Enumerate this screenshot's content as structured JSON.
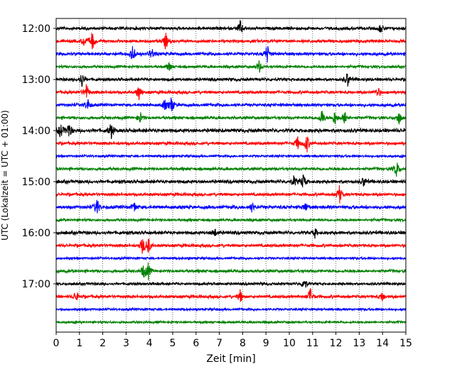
{
  "chart_data": {
    "type": "line",
    "title": "",
    "xlabel": "Zeit  [min]",
    "ylabel": "UTC (Lokalzeit = UTC + 01:00)",
    "xlim": [
      0,
      15
    ],
    "x_ticks": [
      0,
      1,
      2,
      3,
      4,
      5,
      6,
      7,
      8,
      9,
      10,
      11,
      12,
      13,
      14,
      15
    ],
    "x_tick_labels": [
      "0",
      "1",
      "2",
      "3",
      "4",
      "5",
      "6",
      "7",
      "8",
      "9",
      "10",
      "11",
      "12",
      "13",
      "14",
      "15"
    ],
    "y_tick_labels": [
      "12:00",
      "13:00",
      "14:00",
      "15:00",
      "16:00",
      "17:00"
    ],
    "grid": "vertical-dotted",
    "legend": "none",
    "trace_interval_min": 15,
    "colors_cycle": [
      "#000000",
      "#ff0000",
      "#0000ff",
      "#008000"
    ],
    "traces": [
      {
        "start": "12:00",
        "color": "#000000",
        "amp": 0.8,
        "events": [
          {
            "t": 7.9,
            "a": 2.3
          },
          {
            "t": 13.9,
            "a": 1.3
          }
        ]
      },
      {
        "start": "12:15",
        "color": "#ff0000",
        "amp": 0.8,
        "events": [
          {
            "t": 1.2,
            "a": 1.6
          },
          {
            "t": 1.55,
            "a": 3.0
          },
          {
            "t": 4.7,
            "a": 2.6
          }
        ]
      },
      {
        "start": "12:30",
        "color": "#0000ff",
        "amp": 0.8,
        "events": [
          {
            "t": 3.3,
            "a": 3.0
          },
          {
            "t": 4.1,
            "a": 1.8
          },
          {
            "t": 9.05,
            "a": 3.0
          }
        ]
      },
      {
        "start": "12:45",
        "color": "#008000",
        "amp": 0.7,
        "events": [
          {
            "t": 4.85,
            "a": 1.4
          },
          {
            "t": 8.7,
            "a": 2.0
          }
        ]
      },
      {
        "start": "13:00",
        "color": "#000000",
        "amp": 0.8,
        "events": [
          {
            "t": 1.1,
            "a": 2.3
          },
          {
            "t": 12.5,
            "a": 2.3
          }
        ]
      },
      {
        "start": "13:15",
        "color": "#ff0000",
        "amp": 0.8,
        "events": [
          {
            "t": 1.3,
            "a": 2.5
          },
          {
            "t": 3.55,
            "a": 2.5
          },
          {
            "t": 13.8,
            "a": 1.7
          }
        ]
      },
      {
        "start": "13:30",
        "color": "#0000ff",
        "amp": 0.8,
        "events": [
          {
            "t": 1.35,
            "a": 1.9
          },
          {
            "t": 4.65,
            "a": 1.6
          },
          {
            "t": 4.95,
            "a": 2.5
          }
        ]
      },
      {
        "start": "13:45",
        "color": "#008000",
        "amp": 0.8,
        "events": [
          {
            "t": 3.6,
            "a": 1.8
          },
          {
            "t": 11.4,
            "a": 2.6
          },
          {
            "t": 11.95,
            "a": 2.3
          },
          {
            "t": 12.4,
            "a": 2.6
          },
          {
            "t": 14.7,
            "a": 2.0
          }
        ]
      },
      {
        "start": "14:00",
        "color": "#000000",
        "amp": 1.0,
        "events": [
          {
            "t": 0.2,
            "a": 2.3
          },
          {
            "t": 0.55,
            "a": 2.6
          },
          {
            "t": 2.35,
            "a": 2.5
          }
        ]
      },
      {
        "start": "14:15",
        "color": "#ff0000",
        "amp": 0.8,
        "events": [
          {
            "t": 10.35,
            "a": 2.0
          },
          {
            "t": 10.75,
            "a": 3.0
          }
        ]
      },
      {
        "start": "14:30",
        "color": "#0000ff",
        "amp": 0.6,
        "events": []
      },
      {
        "start": "14:45",
        "color": "#008000",
        "amp": 0.8,
        "events": [
          {
            "t": 14.6,
            "a": 2.6
          }
        ]
      },
      {
        "start": "15:00",
        "color": "#000000",
        "amp": 0.9,
        "events": [
          {
            "t": 10.2,
            "a": 1.6
          },
          {
            "t": 10.6,
            "a": 2.3
          },
          {
            "t": 13.2,
            "a": 1.6
          }
        ]
      },
      {
        "start": "15:15",
        "color": "#ff0000",
        "amp": 0.8,
        "events": [
          {
            "t": 12.15,
            "a": 2.8
          }
        ]
      },
      {
        "start": "15:30",
        "color": "#0000ff",
        "amp": 0.9,
        "events": [
          {
            "t": 1.75,
            "a": 2.8
          },
          {
            "t": 3.35,
            "a": 1.6
          },
          {
            "t": 8.4,
            "a": 1.4
          },
          {
            "t": 10.7,
            "a": 1.4
          }
        ]
      },
      {
        "start": "15:45",
        "color": "#008000",
        "amp": 0.7,
        "events": []
      },
      {
        "start": "16:00",
        "color": "#000000",
        "amp": 0.9,
        "events": [
          {
            "t": 6.8,
            "a": 1.3
          },
          {
            "t": 11.1,
            "a": 1.3
          }
        ]
      },
      {
        "start": "16:15",
        "color": "#ff0000",
        "amp": 0.8,
        "events": [
          {
            "t": 3.7,
            "a": 2.6
          },
          {
            "t": 3.95,
            "a": 2.8
          }
        ]
      },
      {
        "start": "16:30",
        "color": "#0000ff",
        "amp": 0.6,
        "events": []
      },
      {
        "start": "16:45",
        "color": "#008000",
        "amp": 0.8,
        "events": [
          {
            "t": 3.75,
            "a": 2.0
          },
          {
            "t": 3.95,
            "a": 2.3
          }
        ]
      },
      {
        "start": "17:00",
        "color": "#000000",
        "amp": 0.7,
        "events": [
          {
            "t": 10.65,
            "a": 2.3
          }
        ]
      },
      {
        "start": "17:15",
        "color": "#ff0000",
        "amp": 0.8,
        "events": [
          {
            "t": 0.85,
            "a": 1.6
          },
          {
            "t": 7.9,
            "a": 2.0
          },
          {
            "t": 10.9,
            "a": 2.6
          },
          {
            "t": 14.0,
            "a": 1.5
          }
        ]
      },
      {
        "start": "17:30",
        "color": "#0000ff",
        "amp": 0.6,
        "events": []
      },
      {
        "start": "17:45",
        "color": "#008000",
        "amp": 0.6,
        "events": []
      }
    ]
  }
}
